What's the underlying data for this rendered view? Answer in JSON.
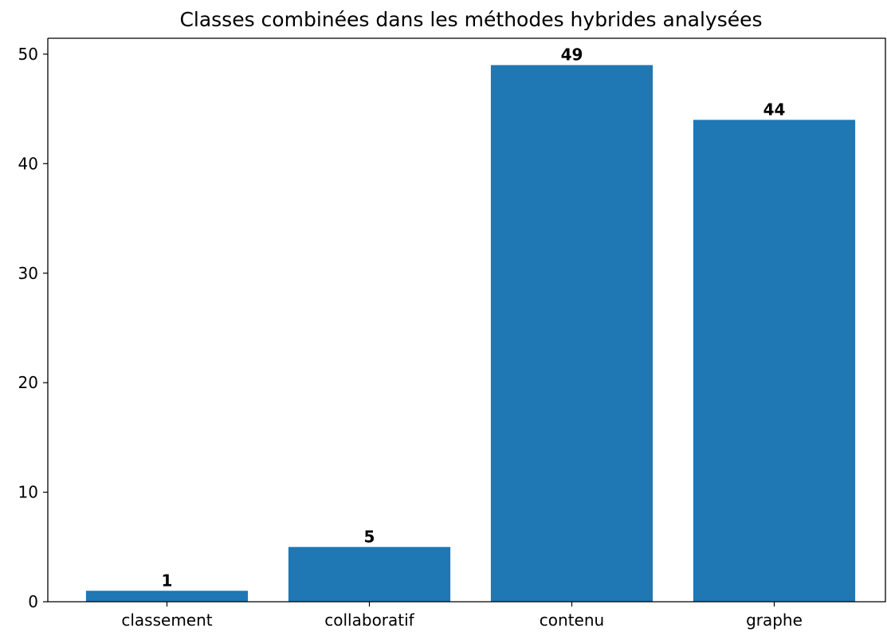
{
  "chart_data": {
    "type": "bar",
    "title": "Classes combinées dans les méthodes hybrides analysées",
    "categories": [
      "classement",
      "collaboratif",
      "contenu",
      "graphe"
    ],
    "values": [
      1,
      5,
      49,
      44
    ],
    "color": "#1f77b4",
    "ylim": [
      0,
      51.45
    ],
    "yticks": [
      0,
      10,
      20,
      30,
      40,
      50
    ],
    "grid": false
  }
}
